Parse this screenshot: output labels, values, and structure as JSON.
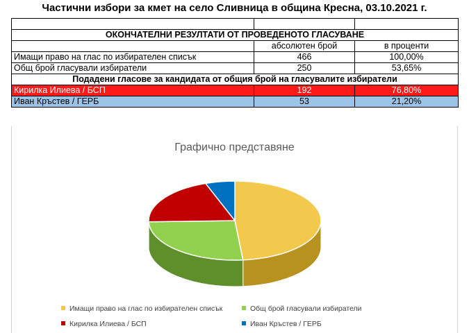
{
  "title": "Частични избори за кмет на село Сливница в община Кресна, 03.10.2021 г.",
  "table": {
    "section_header": "ОКОНЧАТЕЛНИ РЕЗУЛТАТИ ОТ ПРОВЕДЕНОТО ГЛАСУВАНЕ",
    "col_absolute": "абсолютен брой",
    "col_percent": "в проценти",
    "rows": [
      {
        "label": "Имащи право на глас по избирателен списък",
        "absolute": "466",
        "percent": "100,00%"
      },
      {
        "label": "Общ брой гласували избиратели",
        "absolute": "250",
        "percent": "53,65%"
      }
    ],
    "candidates_header": "Подадени гласове за кандидата от общия брой на гласувалите избиратели",
    "candidates": [
      {
        "label": "Кирилка Илиева / БСП",
        "absolute": "192",
        "percent": "76,80%"
      },
      {
        "label": "Иван Кръстев / ГЕРБ",
        "absolute": "53",
        "percent": "21,20%"
      }
    ]
  },
  "colors": {
    "row_highlight_red": "#ff1a1a",
    "row_highlight_blue": "#9dc3e6",
    "slice_yellow": "#f2c94c",
    "slice_green": "#92d050",
    "slice_red": "#c00000",
    "slice_blue": "#0070c0"
  },
  "chart_data": {
    "type": "pie",
    "title": "Графично представяне",
    "three_d": true,
    "categories": [
      "Имащи право на глас по избирателен списък",
      "Общ брой гласували избиратели",
      "Кирилка Илиева / БСП",
      "Иван Кръстев / ГЕРБ"
    ],
    "values": [
      466,
      250,
      192,
      53
    ],
    "legend_position": "bottom"
  }
}
